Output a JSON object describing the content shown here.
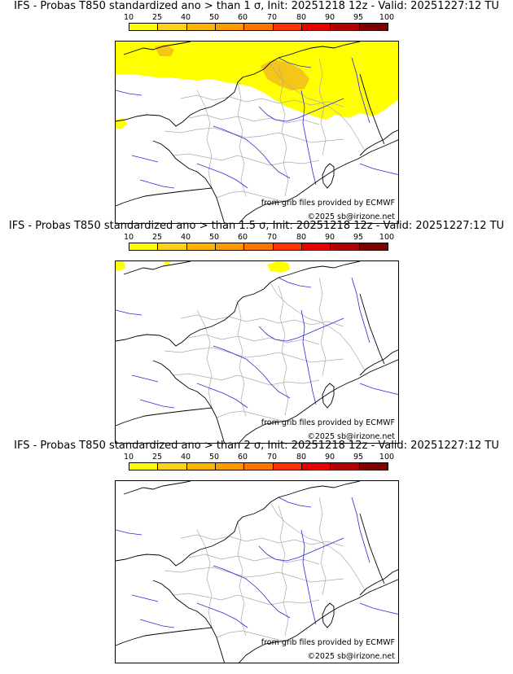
{
  "legend": {
    "ticks": [
      "10",
      "25",
      "40",
      "50",
      "60",
      "70",
      "80",
      "90",
      "95",
      "100"
    ],
    "colors": [
      "#ffff00",
      "#ffd11a",
      "#ffb300",
      "#ff9900",
      "#ff7300",
      "#ff3300",
      "#e60000",
      "#b30000",
      "#800000"
    ]
  },
  "panels": [
    {
      "title": "IFS - Probas T850  standardized ano > than 1 σ, Init: 20251218 12z - Valid: 20251227:12 TU",
      "coverage": "extensive"
    },
    {
      "title": "IFS - Probas T850  standardized ano > than 1.5 σ, Init: 20251218 12z - Valid: 20251227:12 TU",
      "coverage": "minor"
    },
    {
      "title": "IFS - Probas T850  standardized ano > than 2 σ, Init: 20251218 12z - Valid: 20251227:12 TU",
      "coverage": "none"
    }
  ],
  "credits": {
    "source": "from grib files provided by ECMWF",
    "copyright": "©2025 sb@irizone.net"
  },
  "style": {
    "coast": "#000000",
    "rivers": "#2a2ad8",
    "borders": "#aaaaaa",
    "fill_yellow": "#ffff00",
    "fill_gold": "#f5c518"
  }
}
